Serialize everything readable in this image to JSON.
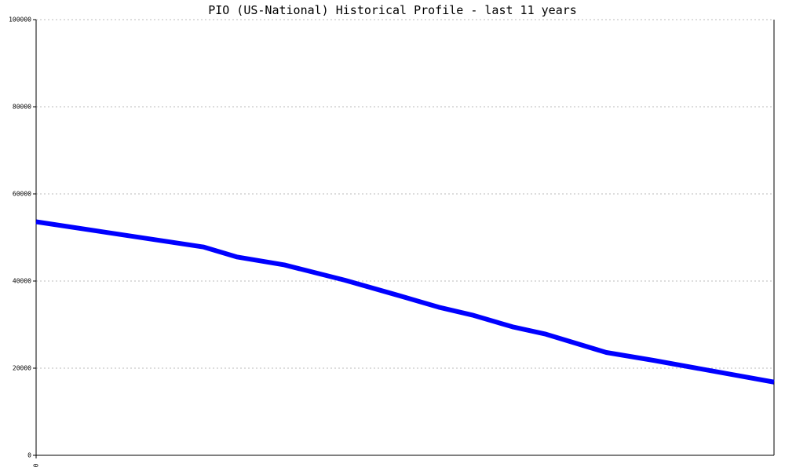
{
  "chart_data": {
    "type": "line",
    "title": "PIO (US-National) Historical Profile - last 11 years",
    "x": [
      0,
      2.5,
      3.0,
      3.7,
      4.6,
      5.4,
      6.0,
      6.5,
      7.1,
      7.6,
      8.5,
      9.2,
      11
    ],
    "series": [
      {
        "color": "#0000ff",
        "values": [
          53600,
          47800,
          45500,
          43700,
          40200,
          36700,
          34000,
          32200,
          29500,
          27800,
          23600,
          21800,
          16800
        ]
      }
    ],
    "xlim": [
      0,
      11
    ],
    "xticks": [
      0
    ],
    "ylim": [
      0,
      100000
    ],
    "yticks": [
      0,
      20000,
      40000,
      60000,
      80000,
      100000
    ],
    "grid": true
  }
}
